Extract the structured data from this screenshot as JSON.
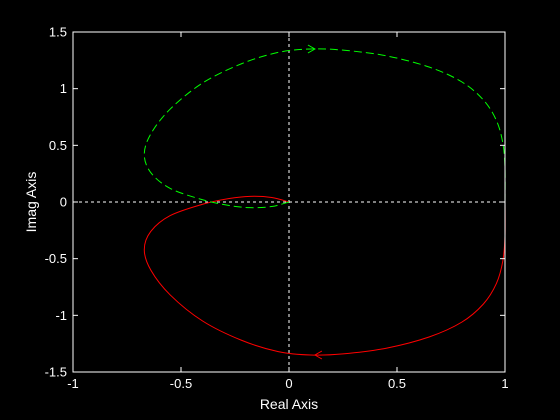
{
  "chart_data": {
    "type": "line",
    "title": "",
    "xlabel": "Real Axis",
    "ylabel": "Imag Axis",
    "xlim": [
      -1,
      1
    ],
    "ylim": [
      -1.5,
      1.5
    ],
    "xticks": [
      -1,
      -0.5,
      0,
      0.5,
      1
    ],
    "xtick_labels": [
      "-1",
      "-0.5",
      "0",
      "0.5",
      "1"
    ],
    "yticks": [
      1.5,
      1,
      0.5,
      0,
      -0.5,
      -1,
      -1.5
    ],
    "ytick_labels": [
      "1.5",
      "1",
      "0.5",
      "0",
      "-0.5",
      "-1",
      "-1.5"
    ],
    "grid": false,
    "reference_lines": {
      "x": 0,
      "y": 0,
      "color": "#ffffff",
      "style": "dashed"
    },
    "series": [
      {
        "color": "#ff0000",
        "style": "solid",
        "x": [
          1.0,
          1.0,
          0.99,
          0.96,
          0.9,
          0.8,
          0.65,
          0.45,
          0.25,
          0.1,
          -0.05,
          -0.22,
          -0.4,
          -0.55,
          -0.64,
          -0.67,
          -0.64,
          -0.55,
          -0.4,
          -0.28,
          -0.18,
          -0.08,
          0.0
        ],
        "y": [
          0.0,
          -0.3,
          -0.52,
          -0.72,
          -0.9,
          -1.06,
          -1.19,
          -1.29,
          -1.34,
          -1.35,
          -1.32,
          -1.22,
          -1.05,
          -0.82,
          -0.6,
          -0.42,
          -0.26,
          -0.12,
          -0.02,
          0.03,
          0.05,
          0.04,
          0.0
        ],
        "arrow_at": {
          "x": 0.12,
          "y": -1.35,
          "direction": "left"
        }
      },
      {
        "color": "#00ff00",
        "style": "dashed",
        "x": [
          0.0,
          -0.08,
          -0.18,
          -0.28,
          -0.4,
          -0.55,
          -0.64,
          -0.67,
          -0.64,
          -0.55,
          -0.4,
          -0.22,
          -0.05,
          0.1,
          0.25,
          0.45,
          0.65,
          0.8,
          0.9,
          0.96,
          0.99,
          1.0,
          1.0
        ],
        "y": [
          0.0,
          -0.04,
          -0.05,
          -0.03,
          0.02,
          0.12,
          0.26,
          0.42,
          0.6,
          0.82,
          1.05,
          1.22,
          1.32,
          1.35,
          1.34,
          1.29,
          1.19,
          1.06,
          0.9,
          0.72,
          0.52,
          0.3,
          0.0
        ],
        "arrow_at": {
          "x": 0.12,
          "y": 1.35,
          "direction": "right"
        }
      }
    ]
  }
}
